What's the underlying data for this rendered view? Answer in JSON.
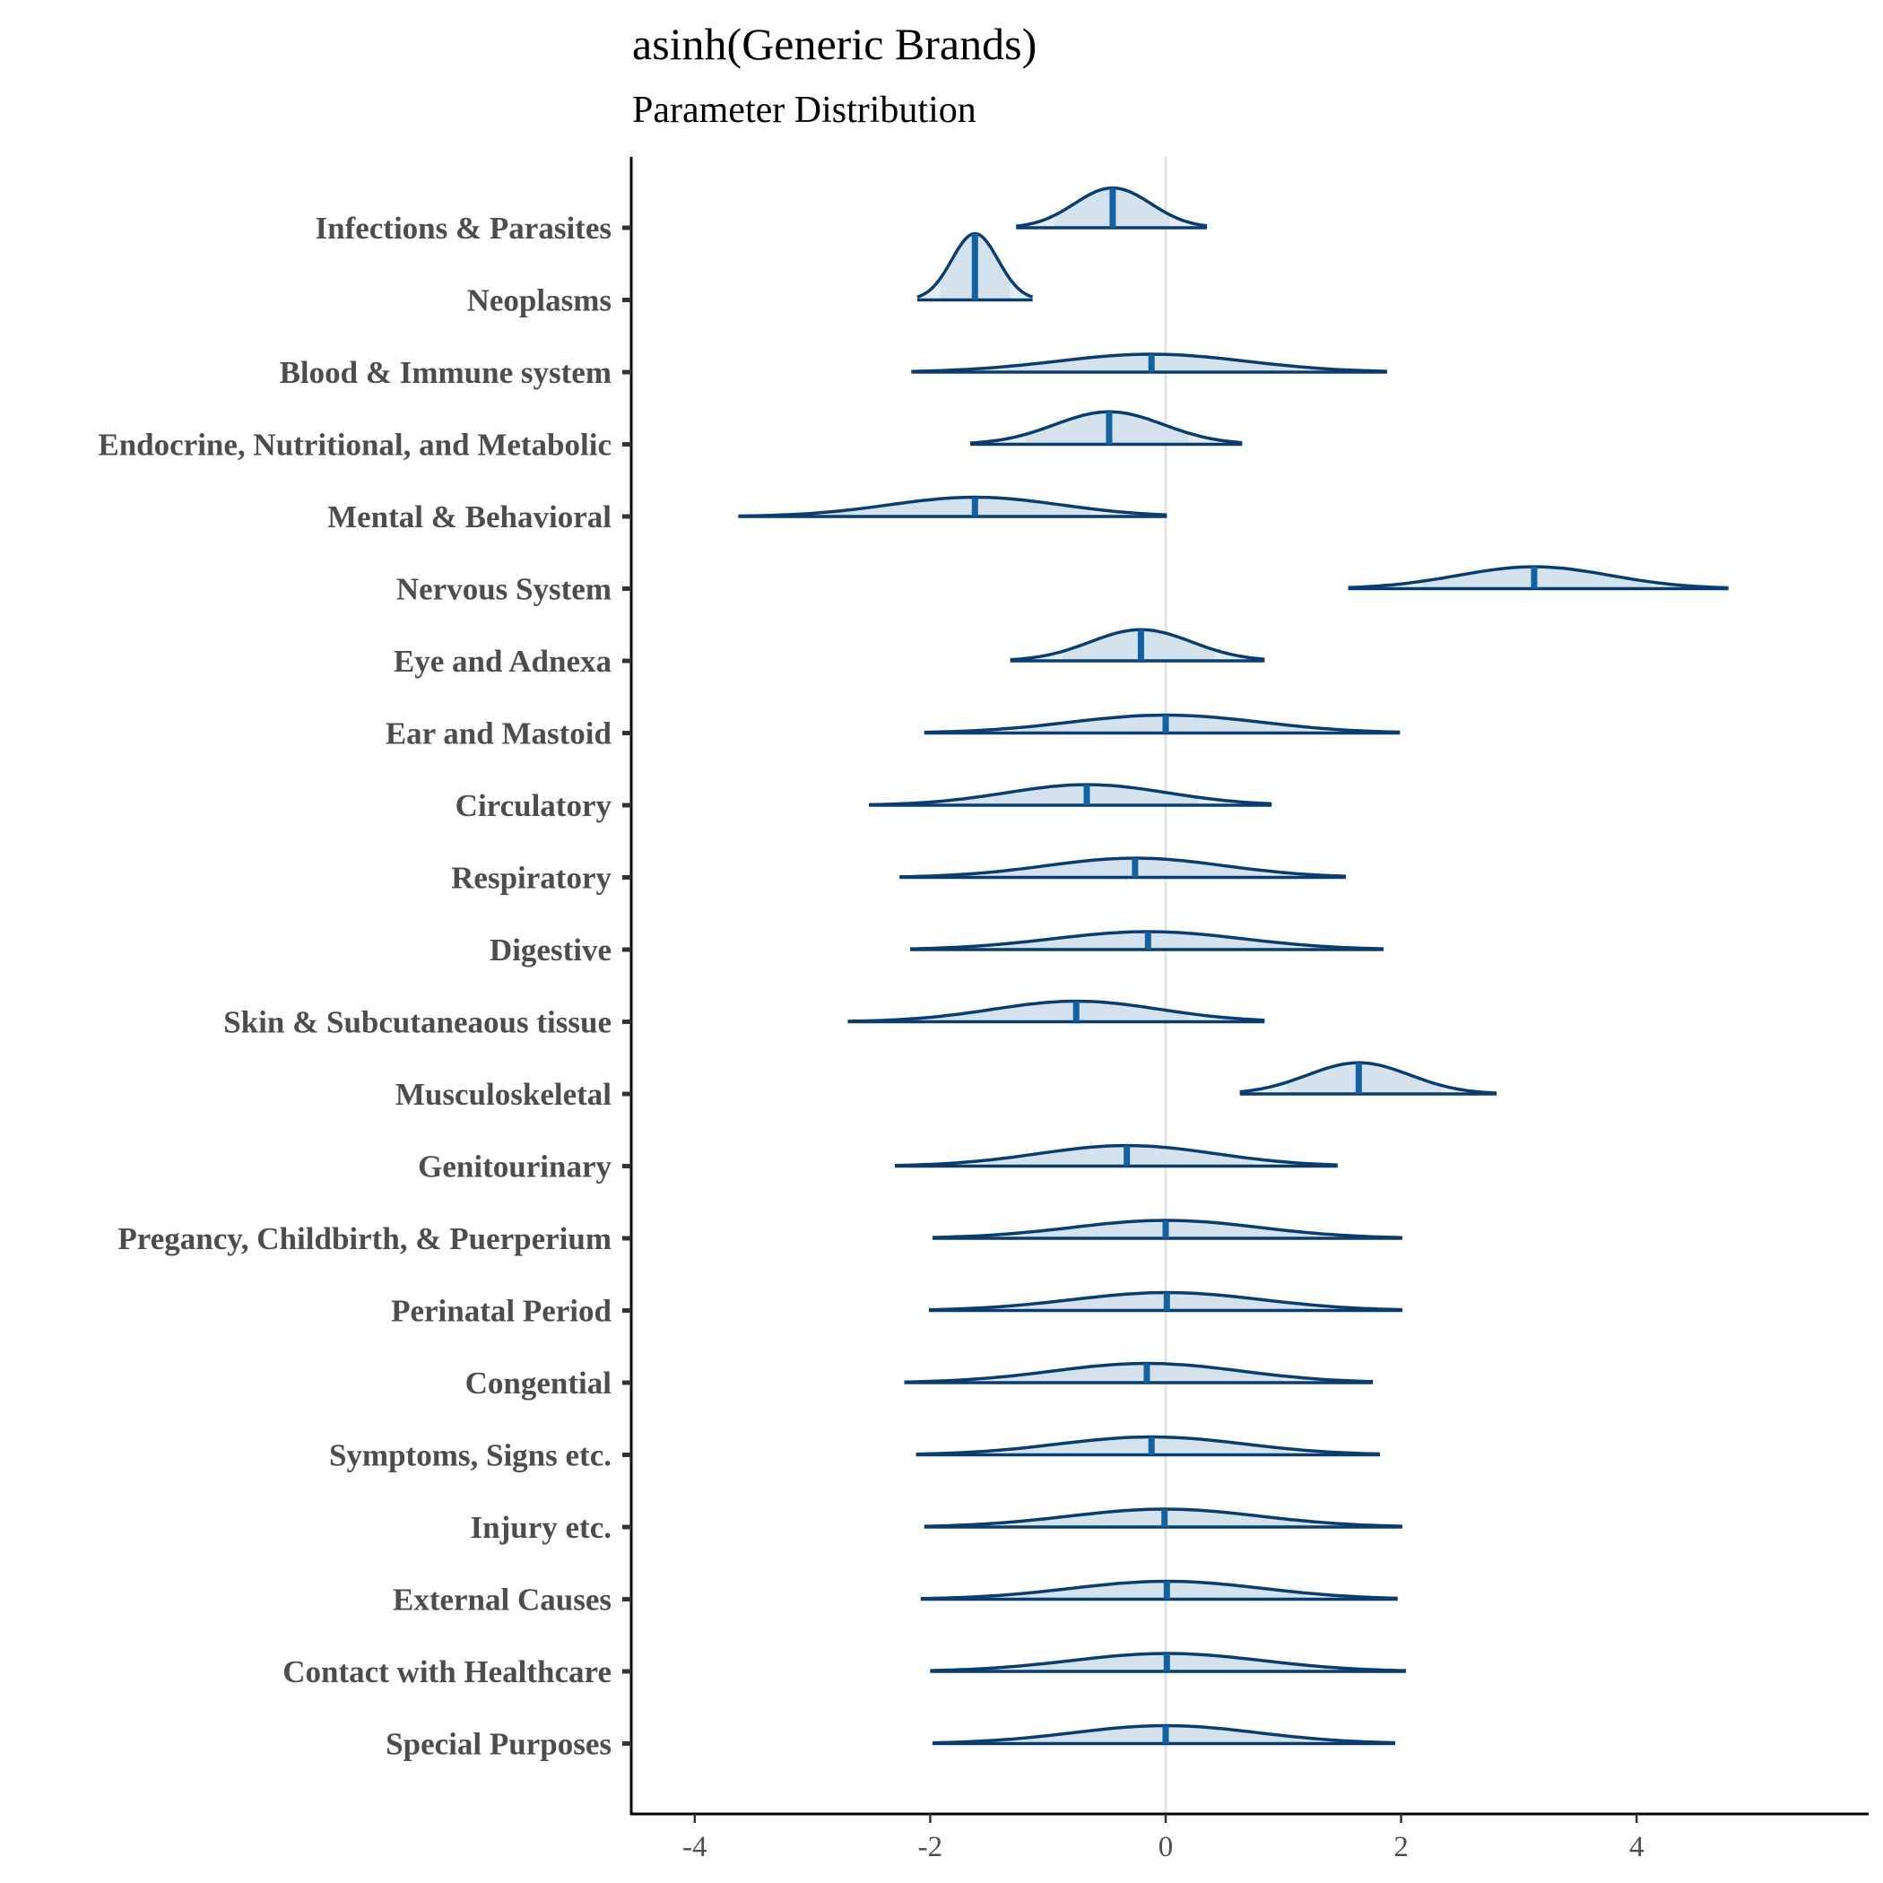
{
  "chart_data": {
    "type": "violin",
    "title": "asinh(Generic Brands)",
    "subtitle": "Parameter Distribution",
    "xlabel": "",
    "ylabel": "",
    "xlim": [
      -4.5,
      5.9
    ],
    "xticks": [
      -4,
      -2,
      0,
      2,
      4
    ],
    "xtick_labels": [
      "-4",
      "-2",
      "0",
      "2",
      "4"
    ],
    "reference_line": 0,
    "grid": false,
    "colors": {
      "outline": "#0b3c6e",
      "fill": "#d3e2ed",
      "median": "#1461a0",
      "reference": "#e3e3e3"
    },
    "categories": [
      {
        "label": "Infections & Parasites",
        "min": -1.27,
        "median": -0.45,
        "max": 0.35,
        "peak": 0.6
      },
      {
        "label": "Neoplasms",
        "min": -2.11,
        "median": -1.62,
        "max": -1.13,
        "peak": 1.0
      },
      {
        "label": "Blood & Immune system",
        "min": -2.16,
        "median": -0.12,
        "max": 1.88,
        "peak": 0.27
      },
      {
        "label": "Endocrine, Nutritional, and Metabolic",
        "min": -1.66,
        "median": -0.48,
        "max": 0.65,
        "peak": 0.49
      },
      {
        "label": "Mental & Behavioral",
        "min": -3.63,
        "median": -1.62,
        "max": 0.01,
        "peak": 0.29
      },
      {
        "label": "Nervous System",
        "min": 1.55,
        "median": 3.13,
        "max": 4.78,
        "peak": 0.33
      },
      {
        "label": "Eye and Adnexa",
        "min": -1.32,
        "median": -0.21,
        "max": 0.84,
        "peak": 0.47
      },
      {
        "label": "Ear and Mastoid",
        "min": -2.05,
        "median": 0.0,
        "max": 1.99,
        "peak": 0.27
      },
      {
        "label": "Circulatory",
        "min": -2.52,
        "median": -0.67,
        "max": 0.9,
        "peak": 0.31
      },
      {
        "label": "Respiratory",
        "min": -2.26,
        "median": -0.26,
        "max": 1.53,
        "peak": 0.29
      },
      {
        "label": "Digestive",
        "min": -2.17,
        "median": -0.15,
        "max": 1.85,
        "peak": 0.27
      },
      {
        "label": "Skin & Subcutaneaous tissue",
        "min": -2.7,
        "median": -0.76,
        "max": 0.84,
        "peak": 0.31
      },
      {
        "label": "Musculoskeletal",
        "min": 0.63,
        "median": 1.64,
        "max": 2.81,
        "peak": 0.47
      },
      {
        "label": "Genitourinary",
        "min": -2.3,
        "median": -0.33,
        "max": 1.46,
        "peak": 0.31
      },
      {
        "label": "Pregancy, Childbirth, & Puerperium",
        "min": -1.98,
        "median": 0.0,
        "max": 2.01,
        "peak": 0.27
      },
      {
        "label": "Perinatal Period",
        "min": -2.01,
        "median": 0.01,
        "max": 2.01,
        "peak": 0.27
      },
      {
        "label": "Congential",
        "min": -2.22,
        "median": -0.16,
        "max": 1.76,
        "peak": 0.29
      },
      {
        "label": "Symptoms, Signs etc.",
        "min": -2.12,
        "median": -0.12,
        "max": 1.82,
        "peak": 0.27
      },
      {
        "label": "Injury etc.",
        "min": -2.05,
        "median": -0.01,
        "max": 2.01,
        "peak": 0.27
      },
      {
        "label": "External Causes",
        "min": -2.08,
        "median": 0.01,
        "max": 1.97,
        "peak": 0.27
      },
      {
        "label": "Contact with Healthcare",
        "min": -2.0,
        "median": 0.01,
        "max": 2.04,
        "peak": 0.27
      },
      {
        "label": "Special Purposes",
        "min": -1.98,
        "median": 0.0,
        "max": 1.95,
        "peak": 0.27
      }
    ]
  }
}
